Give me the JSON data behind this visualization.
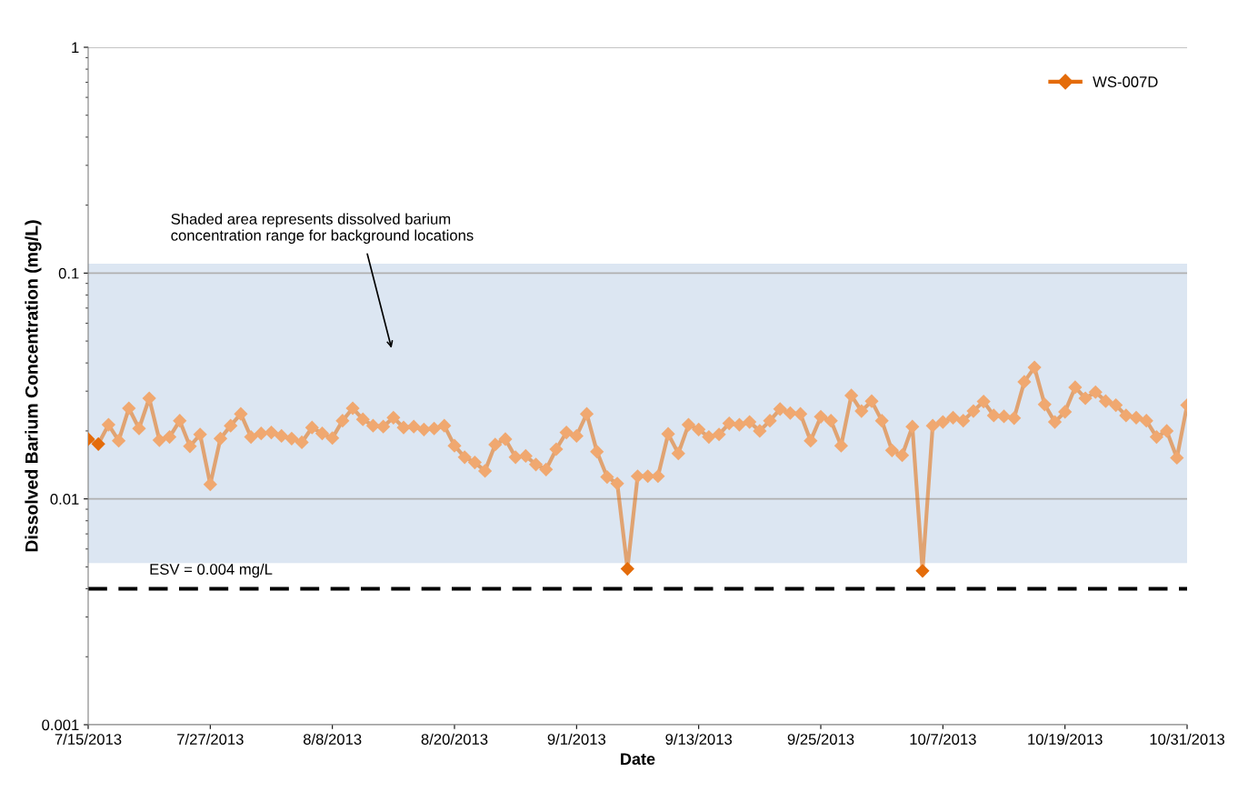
{
  "chart_data": {
    "type": "line",
    "xlabel": "Date",
    "ylabel": "Dissolved Barium Concentration (mg/L)",
    "x": [
      "2013-07-15",
      "2013-07-16",
      "2013-07-17",
      "2013-07-18",
      "2013-07-19",
      "2013-07-20",
      "2013-07-21",
      "2013-07-22",
      "2013-07-23",
      "2013-07-24",
      "2013-07-25",
      "2013-07-26",
      "2013-07-27",
      "2013-07-28",
      "2013-07-29",
      "2013-07-30",
      "2013-07-31",
      "2013-08-01",
      "2013-08-02",
      "2013-08-03",
      "2013-08-04",
      "2013-08-05",
      "2013-08-06",
      "2013-08-07",
      "2013-08-08",
      "2013-08-09",
      "2013-08-10",
      "2013-08-11",
      "2013-08-12",
      "2013-08-13",
      "2013-08-14",
      "2013-08-15",
      "2013-08-16",
      "2013-08-17",
      "2013-08-18",
      "2013-08-19",
      "2013-08-20",
      "2013-08-21",
      "2013-08-22",
      "2013-08-23",
      "2013-08-24",
      "2013-08-25",
      "2013-08-26",
      "2013-08-27",
      "2013-08-28",
      "2013-08-29",
      "2013-08-30",
      "2013-08-31",
      "2013-09-01",
      "2013-09-02",
      "2013-09-03",
      "2013-09-04",
      "2013-09-05",
      "2013-09-06",
      "2013-09-07",
      "2013-09-08",
      "2013-09-09",
      "2013-09-10",
      "2013-09-11",
      "2013-09-12",
      "2013-09-13",
      "2013-09-14",
      "2013-09-15",
      "2013-09-16",
      "2013-09-17",
      "2013-09-18",
      "2013-09-19",
      "2013-09-20",
      "2013-09-21",
      "2013-09-22",
      "2013-09-23",
      "2013-09-24",
      "2013-09-25",
      "2013-09-26",
      "2013-09-27",
      "2013-09-28",
      "2013-09-29",
      "2013-09-30",
      "2013-10-01",
      "2013-10-02",
      "2013-10-03",
      "2013-10-04",
      "2013-10-05",
      "2013-10-06",
      "2013-10-07",
      "2013-10-08",
      "2013-10-09",
      "2013-10-10",
      "2013-10-11",
      "2013-10-12",
      "2013-10-13",
      "2013-10-14",
      "2013-10-15",
      "2013-10-16",
      "2013-10-17",
      "2013-10-18",
      "2013-10-19",
      "2013-10-20",
      "2013-10-21",
      "2013-10-22",
      "2013-10-23",
      "2013-10-24",
      "2013-10-25",
      "2013-10-26",
      "2013-10-27",
      "2013-10-28",
      "2013-10-29",
      "2013-10-30",
      "2013-10-31"
    ],
    "series": [
      {
        "name": "WS-007D",
        "color": "#e46c0a",
        "values": [
          0.0184,
          0.0175,
          0.0213,
          0.0181,
          0.0252,
          0.0205,
          0.0279,
          0.0182,
          0.0188,
          0.0222,
          0.0171,
          0.0193,
          0.0116,
          0.0185,
          0.0211,
          0.0238,
          0.0188,
          0.0195,
          0.0197,
          0.019,
          0.0185,
          0.0178,
          0.0207,
          0.0195,
          0.0186,
          0.0222,
          0.0252,
          0.0225,
          0.0211,
          0.0209,
          0.0229,
          0.0207,
          0.0209,
          0.0203,
          0.0205,
          0.0211,
          0.0172,
          0.0153,
          0.0145,
          0.0133,
          0.0174,
          0.0184,
          0.0153,
          0.0155,
          0.0142,
          0.0135,
          0.0166,
          0.0197,
          0.019,
          0.0238,
          0.0162,
          0.0125,
          0.0117,
          0.0049,
          0.0126,
          0.0126,
          0.0126,
          0.0194,
          0.0159,
          0.0213,
          0.0203,
          0.0188,
          0.0193,
          0.0216,
          0.0213,
          0.0219,
          0.02,
          0.0222,
          0.025,
          0.024,
          0.0238,
          0.0181,
          0.0231,
          0.0222,
          0.0172,
          0.0287,
          0.0245,
          0.0271,
          0.0222,
          0.0164,
          0.0156,
          0.0209,
          0.0048,
          0.0211,
          0.0219,
          0.0229,
          0.0222,
          0.0245,
          0.027,
          0.0234,
          0.0232,
          0.0228,
          0.033,
          0.0382,
          0.0262,
          0.0219,
          0.0243,
          0.0312,
          0.0279,
          0.0297,
          0.0271,
          0.026,
          0.0234,
          0.0229,
          0.0222,
          0.0188,
          0.02,
          0.0152,
          0.026
        ],
        "colors": [
          "#e46c0a",
          "#e46c0a",
          "#f0a870",
          "#f0a870",
          "#f0a870",
          "#f0a870",
          "#f0a870",
          "#f0a870",
          "#f0a870",
          "#f0a870",
          "#f0a870",
          "#f0a870",
          "#f0a870",
          "#f0a870",
          "#f0a870",
          "#f0a870",
          "#f0a870",
          "#f0a870",
          "#f0a870",
          "#f0a870",
          "#f0a870",
          "#f0a870",
          "#f0a870",
          "#f0a870",
          "#f0a870",
          "#f0a870",
          "#f0a870",
          "#f0a870",
          "#f0a870",
          "#f0a870",
          "#f0a870",
          "#f0a870",
          "#f0a870",
          "#f0a870",
          "#f0a870",
          "#f0a870",
          "#f0a870",
          "#f0a870",
          "#f0a870",
          "#f0a870",
          "#f0a870",
          "#f0a870",
          "#f0a870",
          "#f0a870",
          "#f0a870",
          "#f0a870",
          "#f0a870",
          "#f0a870",
          "#f0a870",
          "#f0a870",
          "#f0a870",
          "#f0a870",
          "#f0a870",
          "#e46c0a",
          "#f0a870",
          "#f0a870",
          "#f0a870",
          "#f0a870",
          "#f0a870",
          "#f0a870",
          "#f0a870",
          "#f0a870",
          "#f0a870",
          "#f0a870",
          "#f0a870",
          "#f0a870",
          "#f0a870",
          "#f0a870",
          "#f0a870",
          "#f0a870",
          "#f0a870",
          "#f0a870",
          "#f0a870",
          "#f0a870",
          "#f0a870",
          "#f0a870",
          "#f0a870",
          "#f0a870",
          "#f0a870",
          "#f0a870",
          "#f0a870",
          "#f0a870",
          "#e46c0a",
          "#f0a870",
          "#f0a870",
          "#f0a870",
          "#f0a870",
          "#f0a870",
          "#f0a870",
          "#f0a870",
          "#f0a870",
          "#f0a870",
          "#f0a870",
          "#f0a870",
          "#f0a870",
          "#f0a870",
          "#f0a870",
          "#f0a870",
          "#f0a870",
          "#f0a870",
          "#f0a870",
          "#f0a870",
          "#f0a870",
          "#f0a870",
          "#f0a870",
          "#f0a870",
          "#f0a870",
          "#f0a870",
          "#f0a870"
        ]
      }
    ],
    "log": "y",
    "ylim": [
      0.001,
      1
    ],
    "yticks": [
      0.001,
      0.01,
      0.1,
      1
    ],
    "xlim": [
      "2013-07-15",
      "2013-10-31"
    ],
    "xticks": [
      {
        "value": "2013-07-15",
        "label": "7/15/2013"
      },
      {
        "value": "2013-07-27",
        "label": "7/27/2013"
      },
      {
        "value": "2013-08-08",
        "label": "8/8/2013"
      },
      {
        "value": "2013-08-20",
        "label": "8/20/2013"
      },
      {
        "value": "2013-09-01",
        "label": "9/1/2013"
      },
      {
        "value": "2013-09-13",
        "label": "9/13/2013"
      },
      {
        "value": "2013-09-25",
        "label": "9/25/2013"
      },
      {
        "value": "2013-10-07",
        "label": "10/7/2013"
      },
      {
        "value": "2013-10-19",
        "label": "10/19/2013"
      },
      {
        "value": "2013-10-31",
        "label": "10/31/2013"
      }
    ],
    "grid": "y",
    "legend": "top right",
    "marker": "diamond",
    "line_style": "solid",
    "bands": [
      {
        "axis": "y",
        "from": 0.0052,
        "to": 0.11,
        "color": "#dce6f2"
      }
    ],
    "ref_lines": [
      {
        "axis": "y",
        "value": 0.004,
        "label": "ESV = 0.004 mg/L",
        "color": "#000000",
        "line_style": "dashed"
      }
    ],
    "annotations": [
      "Shaded area represents dissolved barium\nconcentration range for background locations"
    ]
  }
}
